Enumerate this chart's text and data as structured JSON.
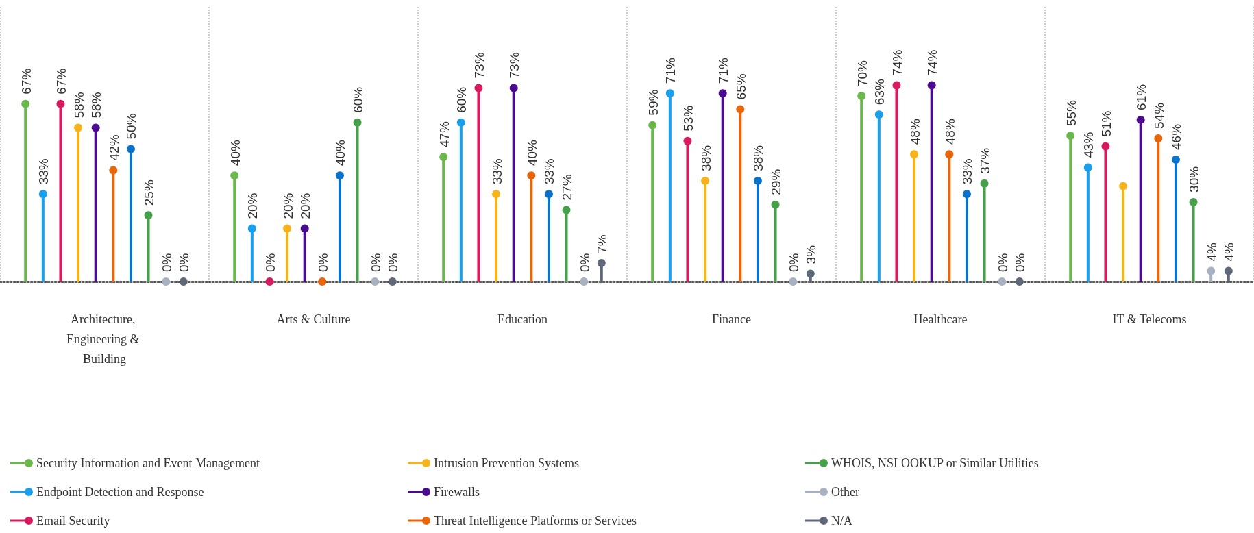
{
  "chart_data": {
    "type": "lollipop",
    "categories": [
      "Architecture, Engineering & Building",
      "Arts & Culture",
      "Education",
      "Finance",
      "Healthcare",
      "IT & Telecoms"
    ],
    "series": [
      {
        "name": "Security Information and Event Management",
        "color": "#6ab84c",
        "values": [
          67,
          40,
          47,
          59,
          70,
          55
        ],
        "value_labels": [
          "67%",
          "40%",
          "47%",
          "59%",
          "70%",
          "55%"
        ]
      },
      {
        "name": "Endpoint Detection and Response",
        "color": "#1a9fec",
        "values": [
          33,
          20,
          60,
          71,
          63,
          43
        ],
        "value_labels": [
          "33%",
          "20%",
          "60%",
          "71%",
          "63%",
          "43%"
        ]
      },
      {
        "name": "Email Security",
        "color": "#d81b60",
        "values": [
          67,
          0,
          73,
          53,
          74,
          51
        ],
        "value_labels": [
          "67%",
          "0%",
          "73%",
          "53%",
          "74%",
          "51%"
        ]
      },
      {
        "name": "Intrusion Prevention Systems",
        "color": "#f6b31a",
        "values": [
          58,
          20,
          33,
          38,
          48,
          36
        ],
        "value_labels": [
          "58%",
          "20%",
          "33%",
          "38%",
          "48%",
          null
        ]
      },
      {
        "name": "Firewalls",
        "color": "#4b0b8f",
        "values": [
          58,
          20,
          73,
          71,
          74,
          61
        ],
        "value_labels": [
          "58%",
          "20%",
          "73%",
          "71%",
          "74%",
          "61%"
        ]
      },
      {
        "name": "Threat Intelligence Platforms or Services",
        "color": "#e8650a",
        "values": [
          42,
          0,
          40,
          65,
          48,
          54
        ],
        "value_labels": [
          "42%",
          "0%",
          "40%",
          "65%",
          "48%",
          "54%"
        ]
      },
      {
        "color": "#0b72cc",
        "values": [
          50,
          40,
          33,
          38,
          33,
          46
        ],
        "value_labels": [
          "50%",
          "40%",
          "33%",
          "38%",
          "33%",
          "46%"
        ]
      },
      {
        "name": "WHOIS, NSLOOKUP or Similar Utilities",
        "color": "#46a04a",
        "values": [
          25,
          60,
          27,
          29,
          37,
          30
        ],
        "value_labels": [
          "25%",
          "60%",
          "27%",
          "29%",
          "37%",
          "30%"
        ]
      },
      {
        "name": "Other",
        "color": "#a7b1c2",
        "values": [
          0,
          0,
          0,
          0,
          0,
          4
        ],
        "value_labels": [
          "0%",
          "0%",
          "0%",
          "0%",
          "0%",
          "4%"
        ]
      },
      {
        "name": "N/A",
        "color": "#5e6878",
        "values": [
          0,
          0,
          7,
          3,
          0,
          4
        ],
        "value_labels": [
          "0%",
          "0%",
          "7%",
          "3%",
          "0%",
          "4%"
        ]
      }
    ],
    "grid": "x",
    "legend": "bottom",
    "tick_labels": "x",
    "marker": "circle"
  }
}
